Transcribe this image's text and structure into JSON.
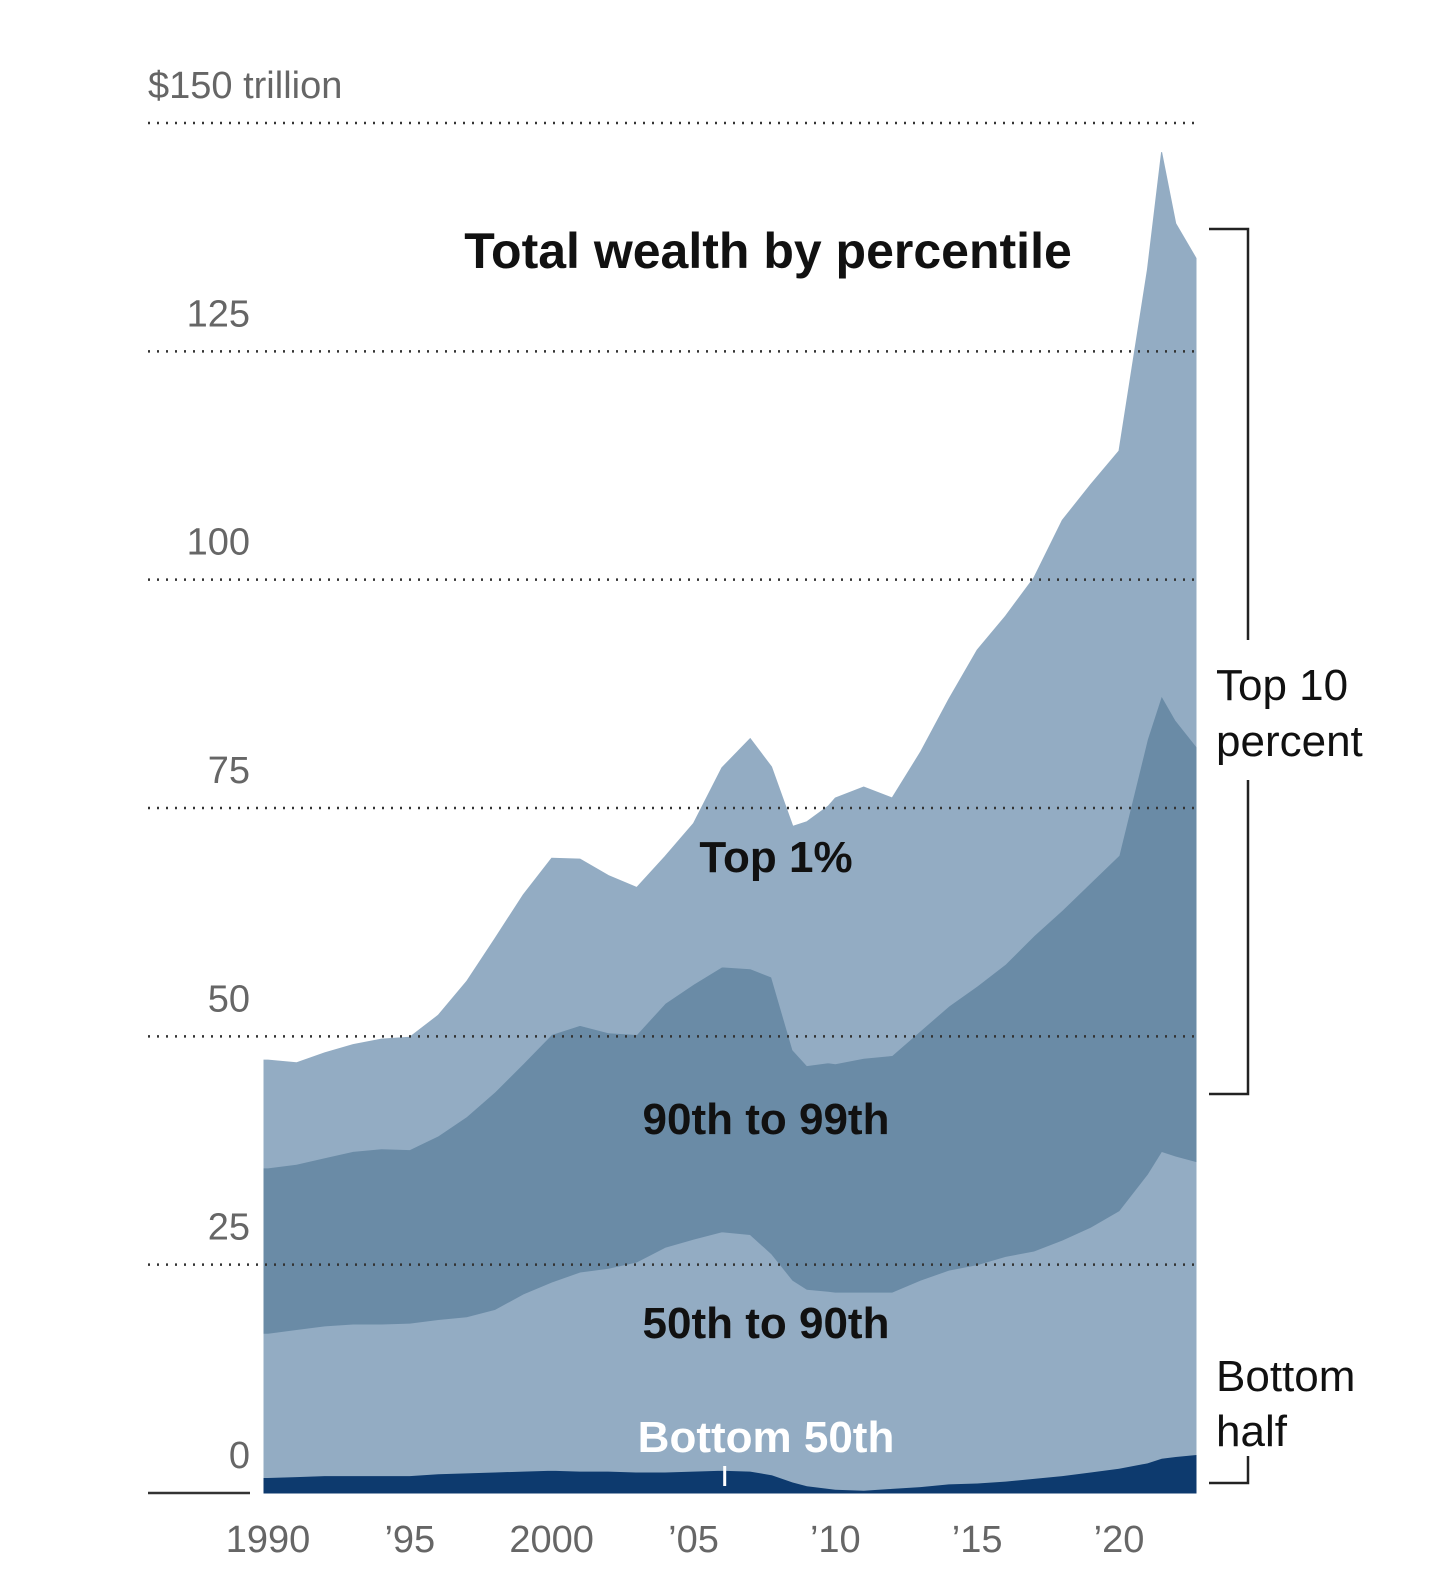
{
  "chart_data": {
    "type": "area",
    "stacked": true,
    "title": "Total wealth by percentile",
    "y_axis": {
      "min": 0,
      "max": 150,
      "ticks": [
        {
          "value": 0,
          "label": "0"
        },
        {
          "value": 25,
          "label": "25"
        },
        {
          "value": 50,
          "label": "50"
        },
        {
          "value": 75,
          "label": "75"
        },
        {
          "value": 100,
          "label": "100"
        },
        {
          "value": 125,
          "label": "125"
        },
        {
          "value": 150,
          "label": "$150 trillion"
        }
      ],
      "grid": "dotted"
    },
    "x_axis": {
      "min": 1989,
      "max": 2023.5,
      "ticks": [
        {
          "value": 1990,
          "label": "1990"
        },
        {
          "value": 1995,
          "label": "’95"
        },
        {
          "value": 2000,
          "label": "2000"
        },
        {
          "value": 2005,
          "label": "’05"
        },
        {
          "value": 2010,
          "label": "’10"
        },
        {
          "value": 2015,
          "label": "’15"
        },
        {
          "value": 2020,
          "label": "’20"
        }
      ]
    },
    "x": [
      1989.5,
      1990,
      1991,
      1992,
      1993,
      1994,
      1995,
      1996,
      1997,
      1998,
      1999,
      2000,
      2001,
      2002,
      2003,
      2004,
      2005,
      2006,
      2007,
      2007.75,
      2008.5,
      2009,
      2009.75,
      2010,
      2011,
      2012,
      2013,
      2014,
      2015,
      2016,
      2017,
      2018,
      2019,
      2020,
      2021,
      2021.5,
      2022,
      2023
    ],
    "series": [
      {
        "name": "Bottom 50th",
        "color": "#0d3a6e",
        "values": [
          1.7,
          1.7,
          1.8,
          1.9,
          1.9,
          1.9,
          1.9,
          2.1,
          2.2,
          2.3,
          2.4,
          2.5,
          2.4,
          2.4,
          2.3,
          2.3,
          2.4,
          2.5,
          2.4,
          2.0,
          1.2,
          0.8,
          0.5,
          0.4,
          0.3,
          0.5,
          0.7,
          1.0,
          1.1,
          1.3,
          1.6,
          1.9,
          2.3,
          2.7,
          3.3,
          3.8,
          4.0,
          4.2
        ]
      },
      {
        "name": "50th to 90th",
        "color": "#93acc3",
        "values": [
          15.8,
          15.8,
          16.1,
          16.4,
          16.6,
          16.6,
          16.7,
          16.9,
          17.1,
          17.8,
          19.4,
          20.6,
          21.8,
          22.2,
          23.0,
          24.6,
          25.4,
          26.1,
          25.9,
          24.2,
          22.1,
          21.5,
          21.6,
          21.6,
          21.7,
          21.5,
          22.6,
          23.4,
          23.9,
          24.6,
          24.9,
          25.8,
          26.8,
          28.2,
          31.6,
          33.6,
          32.9,
          32.1
        ]
      },
      {
        "name": "90th to 99th",
        "color": "#6a8ba6",
        "values": [
          18.1,
          18.1,
          18.1,
          18.4,
          18.9,
          19.2,
          19.0,
          20.1,
          21.9,
          23.8,
          25.2,
          27.1,
          27.0,
          25.8,
          24.9,
          26.7,
          27.9,
          29.0,
          29.1,
          30.3,
          25.2,
          24.5,
          25.0,
          25.0,
          25.6,
          25.9,
          27.3,
          28.9,
          30.5,
          32.0,
          34.5,
          36.1,
          37.7,
          38.9,
          47.6,
          49.9,
          47.7,
          45.5
        ]
      },
      {
        "name": "Top 1%",
        "color": "#93acc3",
        "values": [
          11.8,
          11.8,
          11.1,
          11.5,
          11.7,
          12.0,
          12.3,
          13.2,
          14.8,
          16.8,
          18.5,
          19.3,
          18.2,
          17.2,
          16.1,
          16.1,
          17.6,
          21.8,
          25.2,
          23.0,
          24.5,
          26.7,
          28.1,
          29.1,
          29.7,
          28.2,
          30.5,
          33.6,
          36.8,
          38.1,
          39.2,
          42.7,
          43.6,
          44.3,
          51.4,
          59.5,
          54.4,
          53.4
        ]
      }
    ],
    "annotations": [
      {
        "text": "Top 1%"
      },
      {
        "text": "90th to 99th"
      },
      {
        "text": "50th to 90th"
      },
      {
        "text": "Bottom 50th"
      }
    ],
    "brackets": [
      {
        "label_lines": [
          "Top 10",
          "percent"
        ]
      },
      {
        "label_lines": [
          "Bottom",
          "half"
        ]
      }
    ]
  }
}
